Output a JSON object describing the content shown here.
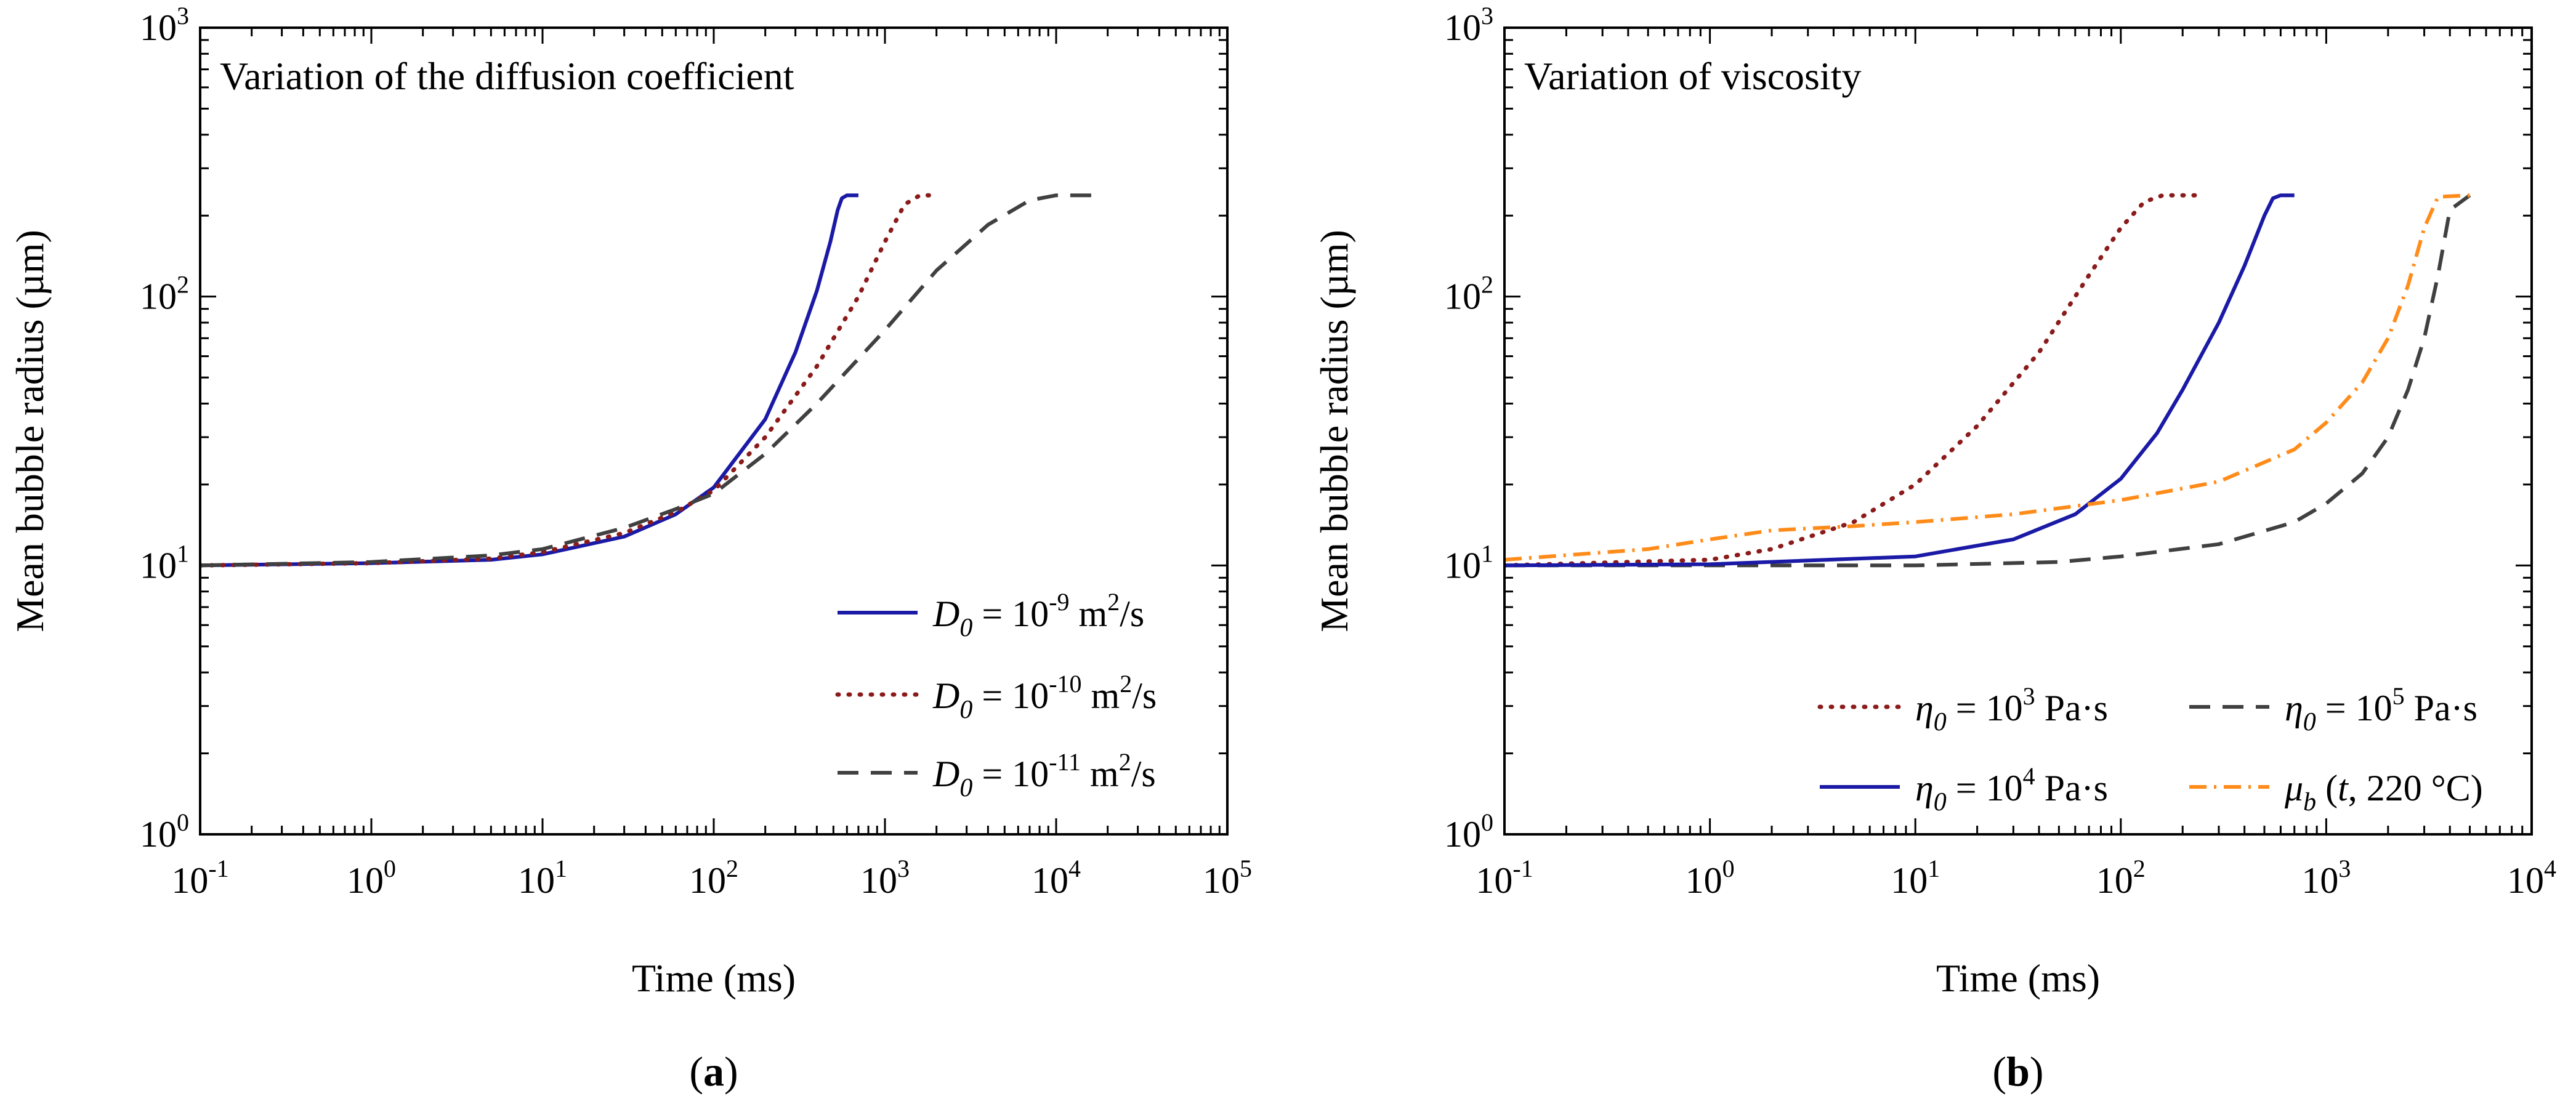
{
  "chart_data": [
    {
      "type": "line",
      "panel_label": "a",
      "title": "Variation of the diffusion coefficient",
      "xlabel": "Time (ms)",
      "ylabel": "Mean bubble radius (µm)",
      "xscale": "log",
      "yscale": "log",
      "xlim": [
        0.1,
        100000
      ],
      "ylim": [
        1,
        1000
      ],
      "xticks": [
        {
          "value": 0.1,
          "base": "10",
          "exp": "-1"
        },
        {
          "value": 1,
          "base": "10",
          "exp": "0"
        },
        {
          "value": 10,
          "base": "10",
          "exp": "1"
        },
        {
          "value": 100,
          "base": "10",
          "exp": "2"
        },
        {
          "value": 1000,
          "base": "10",
          "exp": "3"
        },
        {
          "value": 10000,
          "base": "10",
          "exp": "4"
        },
        {
          "value": 100000,
          "base": "10",
          "exp": "5"
        }
      ],
      "yticks": [
        {
          "value": 1,
          "base": "10",
          "exp": "0"
        },
        {
          "value": 10,
          "base": "10",
          "exp": "1"
        },
        {
          "value": 100,
          "base": "10",
          "exp": "2"
        },
        {
          "value": 1000,
          "base": "10",
          "exp": "3"
        }
      ],
      "legend_position": "bottom-right",
      "series": [
        {
          "name": "D0 = 10^-9 m²/s",
          "label": {
            "sym": "D",
            "sub": "0",
            "eq": " = 10",
            "exp": "-9",
            "unit": " m",
            "unit_exp": "2",
            "tail": "/s"
          },
          "color": "#1a1aa6",
          "dash": "solid",
          "x": [
            0.1,
            1,
            5,
            10,
            30,
            60,
            100,
            200,
            300,
            400,
            480,
            530,
            560,
            600,
            700
          ],
          "y": [
            10,
            10.2,
            10.5,
            11,
            12.8,
            15.5,
            19.5,
            35,
            62,
            105,
            160,
            210,
            232,
            238,
            238
          ]
        },
        {
          "name": "D0 = 10^-10 m²/s",
          "label": {
            "sym": "D",
            "sub": "0",
            "eq": " = 10",
            "exp": "-10",
            "unit": " m",
            "unit_exp": "2",
            "tail": "/s"
          },
          "color": "#8b1a1a",
          "dash": "dotted",
          "x": [
            0.1,
            1,
            5,
            10,
            30,
            60,
            100,
            200,
            400,
            700,
            1000,
            1300,
            1600,
            2000
          ],
          "y": [
            10,
            10.2,
            10.6,
            11.2,
            13.2,
            15.8,
            19,
            30,
            55,
            100,
            160,
            220,
            238,
            238
          ]
        },
        {
          "name": "D0 = 10^-11 m²/s",
          "label": {
            "sym": "D",
            "sub": "0",
            "eq": " = 10",
            "exp": "-11",
            "unit": " m",
            "unit_exp": "2",
            "tail": "/s"
          },
          "color": "#404040",
          "dash": "dashed",
          "x": [
            0.1,
            1,
            5,
            10,
            30,
            60,
            100,
            200,
            400,
            1000,
            2000,
            4000,
            7000,
            10000,
            17000
          ],
          "y": [
            10,
            10.3,
            10.9,
            11.5,
            13.8,
            16.2,
            18.5,
            26,
            40,
            75,
            125,
            185,
            228,
            238,
            238
          ]
        }
      ]
    },
    {
      "type": "line",
      "panel_label": "b",
      "title": "Variation of viscosity",
      "xlabel": "Time (ms)",
      "ylabel": "Mean bubble radius (µm)",
      "xscale": "log",
      "yscale": "log",
      "xlim": [
        0.1,
        10000
      ],
      "ylim": [
        1,
        1000
      ],
      "xticks": [
        {
          "value": 0.1,
          "base": "10",
          "exp": "-1"
        },
        {
          "value": 1,
          "base": "10",
          "exp": "0"
        },
        {
          "value": 10,
          "base": "10",
          "exp": "1"
        },
        {
          "value": 100,
          "base": "10",
          "exp": "2"
        },
        {
          "value": 1000,
          "base": "10",
          "exp": "3"
        },
        {
          "value": 10000,
          "base": "10",
          "exp": "4"
        }
      ],
      "yticks": [
        {
          "value": 1,
          "base": "10",
          "exp": "0"
        },
        {
          "value": 10,
          "base": "10",
          "exp": "1"
        },
        {
          "value": 100,
          "base": "10",
          "exp": "2"
        },
        {
          "value": 1000,
          "base": "10",
          "exp": "3"
        }
      ],
      "legend_position": "bottom-right",
      "series": [
        {
          "name": "η0 = 10^3 Pa·s",
          "label": {
            "sym": "η",
            "sub": "0",
            "eq": " = 10",
            "exp": "3",
            "unit": " Pa·s"
          },
          "color": "#8b1a1a",
          "dash": "dotted",
          "x": [
            0.1,
            1,
            2,
            5,
            10,
            20,
            40,
            70,
            100,
            130,
            160,
            240
          ],
          "y": [
            10,
            10.5,
            11.5,
            14.5,
            20,
            33,
            62,
            120,
            180,
            225,
            238,
            238
          ]
        },
        {
          "name": "η0 = 10^5 Pa·s",
          "label": {
            "sym": "η",
            "sub": "0",
            "eq": " = 10",
            "exp": "5",
            "unit": " Pa·s"
          },
          "color": "#404040",
          "dash": "dashed",
          "x": [
            0.1,
            1,
            10,
            50,
            100,
            300,
            700,
            1000,
            1500,
            2000,
            2500,
            3000,
            3500,
            4000,
            5000
          ],
          "y": [
            10,
            10,
            10,
            10.3,
            10.8,
            12,
            14.5,
            17,
            22,
            30,
            45,
            70,
            120,
            210,
            238
          ]
        },
        {
          "name": "η0 = 10^4 Pa·s",
          "label": {
            "sym": "η",
            "sub": "0",
            "eq": " = 10",
            "exp": "4",
            "unit": " Pa·s"
          },
          "color": "#1a1aa6",
          "dash": "solid",
          "x": [
            0.1,
            1,
            10,
            30,
            60,
            100,
            150,
            200,
            300,
            400,
            500,
            550,
            600,
            700
          ],
          "y": [
            10,
            10.1,
            10.8,
            12.5,
            15.5,
            21,
            31,
            45,
            80,
            130,
            200,
            232,
            238,
            238
          ]
        },
        {
          "name": "μb (t, 220 °C)",
          "label": {
            "sym": "μ",
            "sub": "b",
            "eq": " (",
            "italic_t": "t",
            "unit": ", 220 °C)"
          },
          "color": "#ff8c1a",
          "dash": "dashdot",
          "x": [
            0.1,
            0.5,
            1,
            2,
            5,
            10,
            30,
            100,
            300,
            700,
            1000,
            1500,
            2000,
            2500,
            3000,
            3500,
            5000
          ],
          "y": [
            10.5,
            11.5,
            12.5,
            13.5,
            14,
            14.5,
            15.5,
            17.5,
            20.5,
            27,
            34,
            48,
            70,
            110,
            180,
            235,
            238
          ]
        }
      ]
    }
  ]
}
